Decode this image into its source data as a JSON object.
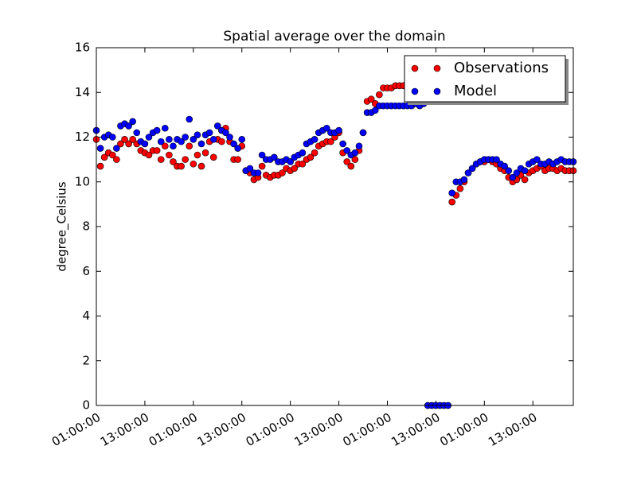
{
  "chart_data": {
    "type": "scatter",
    "title": "Spatial average over the domain",
    "y_label": "degree_Celsius",
    "x": [
      0,
      1,
      2,
      3,
      4,
      5,
      6,
      7,
      8,
      9,
      10,
      11,
      12,
      13,
      14,
      15,
      16,
      17,
      18,
      19,
      20,
      21,
      22,
      23,
      24,
      25,
      26,
      27,
      28,
      29,
      30,
      31,
      32,
      33,
      34,
      35,
      36,
      37,
      38,
      39,
      40,
      41,
      42,
      43,
      44,
      45,
      46,
      47,
      48,
      49,
      50,
      51,
      52,
      53,
      54,
      55,
      56,
      57,
      58,
      59,
      60,
      61,
      62,
      63,
      64,
      65,
      66,
      67,
      68,
      69,
      70,
      71,
      72,
      73,
      74,
      75,
      76,
      77,
      78,
      79,
      80,
      81,
      82,
      83,
      84,
      85,
      86,
      87,
      88,
      89,
      90,
      91,
      92,
      93,
      94,
      95,
      96,
      97,
      98,
      99,
      100,
      101,
      102,
      103,
      104,
      105,
      106,
      107,
      108,
      109,
      110,
      111,
      112,
      113,
      114,
      115,
      116,
      117,
      118
    ],
    "series": [
      {
        "name": "Observations",
        "color": "#ff0000",
        "values": [
          11.9,
          10.7,
          11.1,
          11.3,
          11.2,
          11.0,
          11.7,
          11.9,
          11.7,
          11.9,
          11.7,
          11.4,
          11.3,
          11.2,
          11.4,
          11.4,
          11.0,
          11.6,
          11.2,
          10.9,
          10.7,
          10.7,
          11.0,
          11.6,
          10.8,
          11.2,
          10.7,
          11.3,
          11.8,
          11.1,
          11.9,
          11.8,
          12.4,
          11.8,
          11.0,
          11.0,
          11.6,
          10.5,
          10.4,
          10.1,
          10.2,
          10.7,
          10.3,
          10.2,
          10.3,
          10.3,
          10.4,
          10.6,
          10.5,
          10.6,
          10.8,
          10.8,
          11.0,
          11.1,
          11.3,
          11.6,
          11.7,
          11.8,
          11.8,
          12.0,
          12.2,
          11.3,
          10.9,
          10.7,
          11.0,
          11.4,
          12.2,
          13.6,
          13.7,
          13.5,
          13.9,
          14.2,
          14.2,
          14.2,
          14.3,
          14.3,
          14.3,
          14.3,
          14.4,
          14.3,
          14.3,
          14.4,
          0,
          0,
          0,
          0,
          0,
          0,
          9.1,
          9.4,
          9.7,
          10.0,
          10.4,
          10.6,
          10.8,
          10.9,
          10.9,
          11.0,
          10.9,
          10.8,
          10.6,
          10.5,
          10.2,
          10.0,
          10.1,
          10.3,
          10.1,
          10.4,
          10.5,
          10.6,
          10.7,
          10.5,
          10.6,
          10.6,
          10.5,
          10.6,
          10.5,
          10.5,
          10.5
        ]
      },
      {
        "name": "Model",
        "color": "#0000ff",
        "values": [
          12.3,
          11.5,
          12.0,
          12.1,
          12.0,
          11.5,
          12.5,
          12.6,
          12.5,
          12.7,
          12.2,
          11.8,
          11.7,
          12.0,
          12.2,
          12.3,
          11.8,
          12.4,
          11.9,
          11.6,
          11.9,
          11.8,
          12.0,
          12.8,
          11.9,
          12.1,
          11.7,
          12.1,
          12.2,
          11.9,
          12.5,
          12.3,
          12.2,
          12.0,
          11.7,
          11.5,
          11.9,
          10.5,
          10.6,
          10.4,
          10.4,
          11.2,
          11.0,
          11.0,
          11.1,
          10.9,
          10.9,
          11.0,
          10.9,
          11.1,
          11.2,
          11.3,
          11.7,
          11.8,
          11.9,
          12.2,
          12.3,
          12.4,
          12.2,
          12.2,
          12.3,
          11.7,
          11.4,
          11.2,
          11.3,
          11.6,
          12.2,
          13.1,
          13.1,
          13.2,
          13.4,
          13.4,
          13.4,
          13.4,
          13.4,
          13.4,
          13.4,
          13.4,
          13.4,
          13.5,
          13.4,
          13.5,
          0,
          0,
          0,
          0,
          0,
          0,
          9.5,
          10.0,
          10.0,
          10.1,
          10.4,
          10.6,
          10.8,
          10.9,
          11.0,
          11.0,
          11.0,
          11.0,
          10.8,
          10.7,
          10.5,
          10.2,
          10.4,
          10.6,
          10.5,
          10.8,
          10.9,
          11.0,
          10.8,
          10.8,
          10.9,
          10.8,
          10.9,
          11.0,
          10.9,
          10.9,
          10.9
        ]
      }
    ],
    "xlim": [
      0,
      118
    ],
    "xticks": [
      {
        "value": 0,
        "label": "01:00:00"
      },
      {
        "value": 12,
        "label": "13:00:00"
      },
      {
        "value": 24,
        "label": "01:00:00"
      },
      {
        "value": 36,
        "label": "13:00:00"
      },
      {
        "value": 48,
        "label": "01:00:00"
      },
      {
        "value": 60,
        "label": "13:00:00"
      },
      {
        "value": 72,
        "label": "01:00:00"
      },
      {
        "value": 84,
        "label": "13:00:00"
      },
      {
        "value": 96,
        "label": "01:00:00"
      },
      {
        "value": 108,
        "label": "13:00:00"
      }
    ],
    "ylim": [
      0,
      16
    ],
    "yticks": [
      0,
      2,
      4,
      6,
      8,
      10,
      12,
      14,
      16
    ],
    "grid": false,
    "legend": "upper right"
  }
}
